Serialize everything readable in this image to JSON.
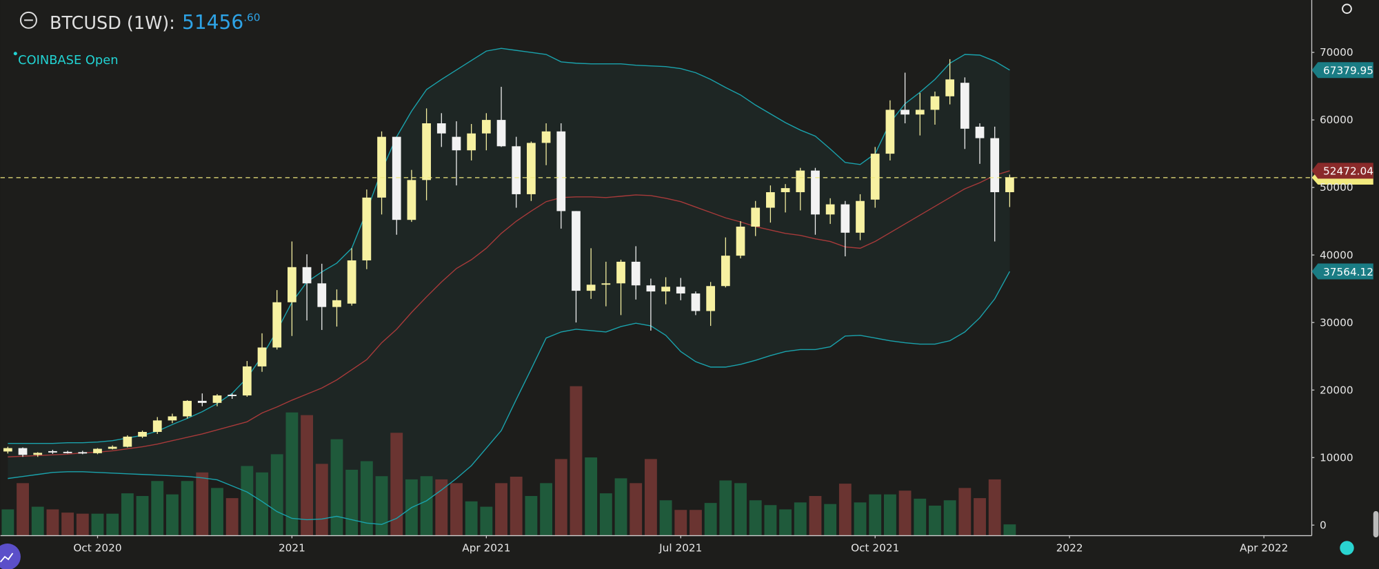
{
  "header": {
    "symbol": "BTCUSD (1W):",
    "price_label": "51456",
    "price_decimals": ".60",
    "exchange": "COINBASE Open"
  },
  "chart_data": {
    "type": "candlestick",
    "categories": [
      null,
      null,
      null,
      null,
      null,
      null,
      null,
      null,
      null,
      null,
      null,
      null,
      null,
      null,
      null,
      null,
      null,
      null,
      null,
      null,
      null,
      null,
      null,
      null,
      null,
      null,
      null,
      null,
      null,
      null,
      null,
      null,
      null,
      null,
      null,
      null,
      null,
      null,
      null,
      null,
      null,
      null,
      null,
      null,
      null,
      null,
      null,
      null,
      null,
      null,
      null,
      null,
      null,
      null,
      null,
      null,
      null,
      null,
      null,
      null,
      null,
      null,
      null,
      null,
      null,
      null,
      null,
      null
    ],
    "open": [
      10900,
      11400,
      10400,
      10950,
      10850,
      10800,
      10650,
      11300,
      11600,
      13100,
      13800,
      15500,
      16100,
      18400,
      18100,
      19300,
      19200,
      23500,
      26300,
      33000,
      38200,
      35800,
      32300,
      32800,
      39200,
      48500,
      57500,
      45200,
      51100,
      59500,
      57500,
      55500,
      58000,
      60000,
      56100,
      49000,
      56600,
      58300,
      46500,
      34700,
      35600,
      35800,
      39000,
      35500,
      34600,
      35300,
      34300,
      31700,
      35400,
      39900,
      44200,
      47000,
      49300,
      49300,
      52500,
      46000,
      47500,
      43300,
      48200,
      55000,
      61500,
      60800,
      61500,
      63500,
      65500,
      59000,
      57300,
      49300
    ],
    "high": [
      11600,
      11500,
      10800,
      11150,
      11000,
      11000,
      11400,
      11800,
      13300,
      14000,
      16000,
      16500,
      18500,
      19500,
      19400,
      19500,
      24300,
      28400,
      34800,
      42000,
      40100,
      38700,
      34900,
      41000,
      49700,
      58300,
      57500,
      52600,
      61700,
      61000,
      59800,
      59400,
      61000,
      64900,
      57500,
      56800,
      59500,
      59500,
      46500,
      41000,
      39000,
      39300,
      41300,
      36500,
      36700,
      36600,
      34600,
      36000,
      42600,
      45000,
      48000,
      50300,
      50500,
      52900,
      52900,
      48400,
      48000,
      49000,
      56000,
      62900,
      67000,
      64000,
      64200,
      69000,
      66300,
      59500,
      59000,
      51900
    ],
    "low": [
      10600,
      10100,
      10100,
      10550,
      10600,
      10500,
      10500,
      11200,
      11500,
      12900,
      13500,
      15100,
      15800,
      17600,
      17600,
      18700,
      19000,
      22700,
      26000,
      28000,
      30300,
      28900,
      29400,
      32500,
      37900,
      46000,
      43000,
      44900,
      48100,
      56000,
      50300,
      54000,
      55500,
      56000,
      47000,
      48000,
      53300,
      43900,
      30000,
      33500,
      32400,
      31100,
      33400,
      28800,
      32700,
      33300,
      31100,
      29500,
      35200,
      39500,
      42800,
      44800,
      46300,
      46600,
      43000,
      44600,
      39800,
      42200,
      47000,
      54000,
      59500,
      57700,
      59300,
      62300,
      55700,
      53500,
      42000,
      47100
    ],
    "close": [
      11400,
      10400,
      10700,
      10750,
      10700,
      10650,
      11300,
      11600,
      13100,
      13800,
      15500,
      16100,
      18400,
      18100,
      19200,
      19200,
      23500,
      26300,
      33000,
      38200,
      35800,
      32300,
      33300,
      39200,
      48500,
      57500,
      45200,
      51100,
      59500,
      58000,
      55500,
      58000,
      60000,
      56100,
      49000,
      56600,
      58300,
      46500,
      34700,
      35600,
      35800,
      39000,
      35500,
      34600,
      35300,
      34300,
      31700,
      35400,
      39900,
      44200,
      47000,
      49300,
      49900,
      52500,
      46000,
      47500,
      43300,
      48000,
      55000,
      61500,
      60800,
      61500,
      63500,
      66000,
      58700,
      57300,
      49300,
      51500
    ],
    "up_color": "#f7f1a1",
    "down_color": "#f2f2f2",
    "bands": {
      "upper": [
        12100,
        12100,
        12100,
        12100,
        12200,
        12200,
        12300,
        12500,
        12900,
        13300,
        13900,
        14900,
        15800,
        16800,
        18000,
        19500,
        21800,
        25000,
        28800,
        33000,
        36000,
        37500,
        38800,
        41000,
        46500,
        52500,
        57500,
        61300,
        64500,
        66000,
        67400,
        68800,
        70200,
        70600,
        70300,
        70000,
        69700,
        68600,
        68400,
        68300,
        68300,
        68300,
        68100,
        68000,
        67900,
        67600,
        67000,
        66000,
        64800,
        63700,
        62200,
        60900,
        59600,
        58500,
        57600,
        55700,
        53700,
        53400,
        55000,
        59600,
        62400,
        64100,
        66000,
        68400,
        69700,
        69600,
        68700,
        67379.95
      ],
      "middle": [
        10100,
        10200,
        10300,
        10400,
        10500,
        10700,
        10800,
        11000,
        11300,
        11600,
        12000,
        12500,
        13000,
        13500,
        14100,
        14700,
        15300,
        16600,
        17500,
        18500,
        19400,
        20300,
        21500,
        23000,
        24500,
        27000,
        29000,
        31500,
        33800,
        36000,
        38000,
        39300,
        41000,
        43200,
        45000,
        46500,
        47900,
        48500,
        48600,
        48600,
        48500,
        48700,
        48900,
        48800,
        48400,
        47900,
        47100,
        46300,
        45500,
        44900,
        44200,
        43700,
        43200,
        42900,
        42400,
        42000,
        41200,
        41000,
        42000,
        43300,
        44600,
        45900,
        47200,
        48500,
        49800,
        50700,
        51800,
        52472.04
      ],
      "lower": [
        6900,
        7200,
        7500,
        7800,
        7900,
        7900,
        7800,
        7700,
        7600,
        7500,
        7400,
        7300,
        7200,
        7000,
        6700,
        5800,
        4900,
        3500,
        2000,
        1000,
        800,
        900,
        1300,
        800,
        300,
        100,
        1000,
        2600,
        3600,
        5200,
        6900,
        8800,
        11400,
        14000,
        18600,
        23100,
        27700,
        28600,
        29000,
        28800,
        28600,
        29400,
        29900,
        29500,
        28100,
        25700,
        24200,
        23400,
        23400,
        23800,
        24400,
        25100,
        25700,
        26000,
        26000,
        26400,
        28000,
        28100,
        27700,
        27300,
        27000,
        26800,
        26800,
        27300,
        28600,
        30700,
        33500,
        37564.12
      ],
      "band_color": "#1aa3ad",
      "middle_color": "#a83a3a",
      "fill_color": "#1e2624",
      "upper_label_color": "#1a7c84",
      "middle_label_color": "#8a2a2a",
      "lower_label_color": "#1a7c84"
    },
    "volume": [
      4.9,
      9.8,
      5.4,
      4.9,
      4.3,
      4.1,
      4.1,
      4.1,
      7.9,
      7.4,
      10.2,
      7.7,
      10.2,
      11.8,
      8.9,
      7.0,
      13.0,
      11.8,
      15.2,
      23.0,
      22.5,
      13.4,
      18.0,
      12.3,
      13.9,
      11.1,
      19.2,
      10.5,
      11.1,
      10.5,
      9.8,
      6.4,
      5.4,
      9.8,
      11.0,
      7.4,
      9.8,
      14.3,
      27.9,
      14.6,
      7.9,
      10.7,
      9.8,
      14.3,
      6.6,
      4.8,
      4.8,
      6.1,
      10.3,
      9.8,
      6.6,
      5.7,
      4.9,
      6.2,
      7.4,
      5.9,
      9.7,
      6.2,
      7.7,
      7.7,
      8.4,
      6.9,
      5.6,
      6.6,
      8.9,
      7.0,
      10.5,
      2.1
    ],
    "volume_up_color": "#1f5a3b",
    "volume_down_color": "#6a3431",
    "y2lim": [
      0,
      100
    ],
    "last_price": 51456.6,
    "last_price_color": "#f2ea7e",
    "xlim": [
      -0.2,
      87.2
    ],
    "xticks": [
      {
        "value": 6,
        "label": "Oct 2020"
      },
      {
        "value": 19,
        "label": "2021"
      },
      {
        "value": 32,
        "label": "Apr 2021"
      },
      {
        "value": 45,
        "label": "Jul 2021"
      },
      {
        "value": 58,
        "label": "Oct 2021"
      },
      {
        "value": 71,
        "label": "2022"
      },
      {
        "value": 84,
        "label": "Apr 2022"
      }
    ],
    "ylim": [
      -1560,
      77760
    ],
    "yticks": [
      0,
      10000,
      20000,
      30000,
      40000,
      50000,
      60000,
      70000
    ],
    "grid": false
  }
}
